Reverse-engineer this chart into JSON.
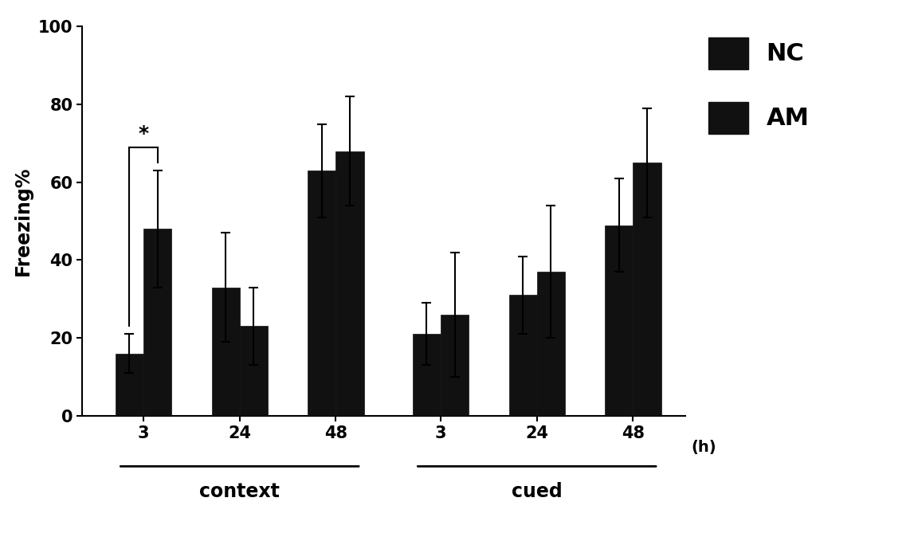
{
  "NC_values": [
    16,
    33,
    63,
    21,
    31,
    49
  ],
  "AM_values": [
    48,
    23,
    68,
    26,
    37,
    65
  ],
  "NC_errors": [
    5,
    14,
    12,
    8,
    10,
    12
  ],
  "AM_errors": [
    15,
    10,
    14,
    16,
    17,
    14
  ],
  "bar_color": "#111111",
  "ylabel": "Freezing%",
  "ylim": [
    0,
    100
  ],
  "yticks": [
    0,
    20,
    40,
    60,
    80,
    100
  ],
  "bar_width": 0.32,
  "context_centers": [
    1.0,
    2.1,
    3.2
  ],
  "cued_centers": [
    4.4,
    5.5,
    6.6
  ],
  "time_labels": [
    "3",
    "24",
    "48",
    "3",
    "24",
    "48"
  ],
  "context_label": "context",
  "cued_label": "cued",
  "sig_text": "*",
  "h_label": "(h)",
  "legend_labels": [
    "NC",
    "AM"
  ]
}
